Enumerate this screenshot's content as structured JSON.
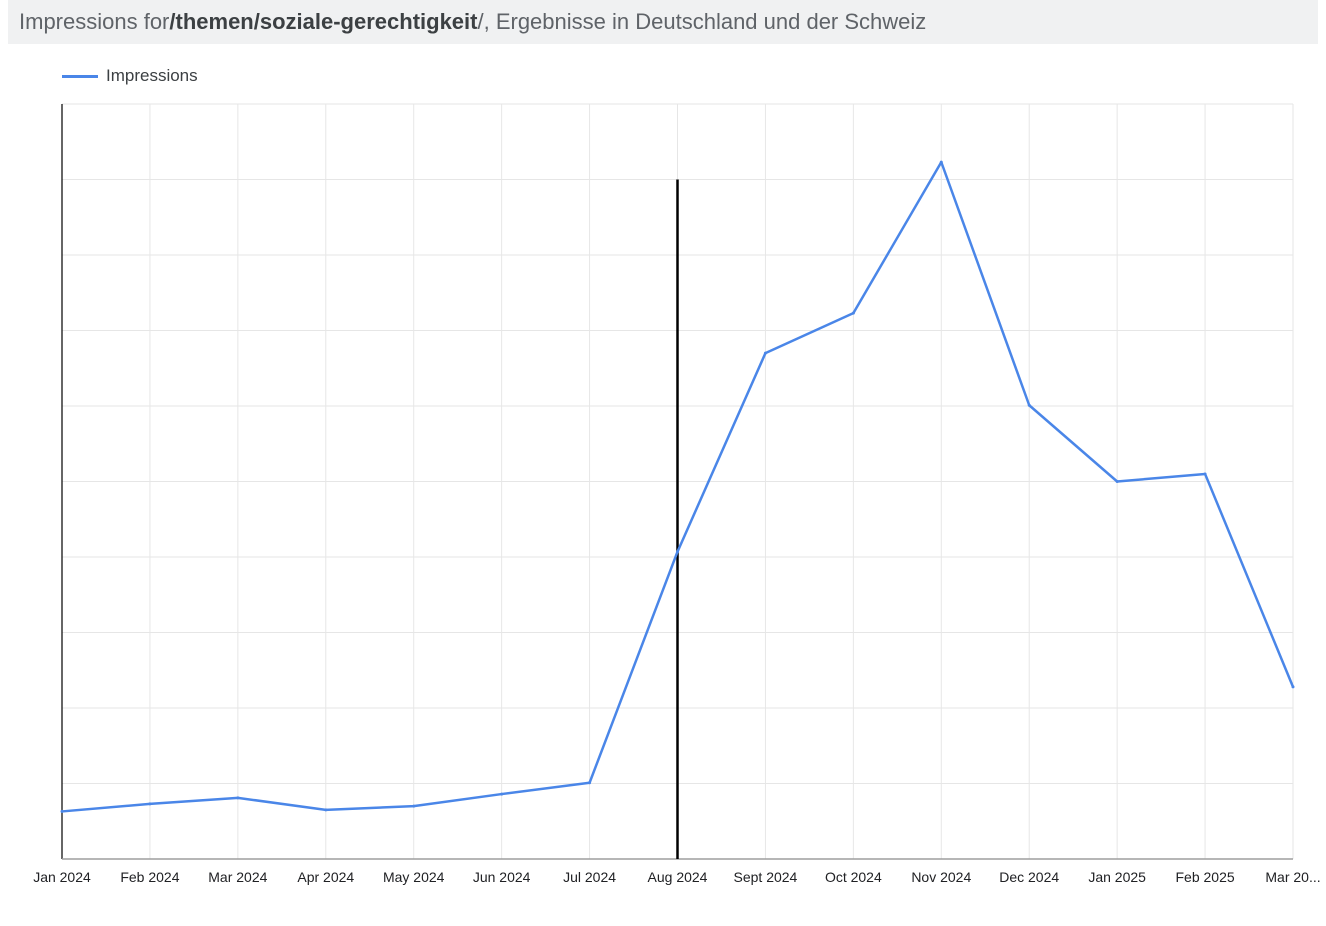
{
  "title": {
    "prefix": "Impressions for ",
    "path": "/themen/soziale-gerechtigkeit",
    "suffix": "/, Ergebnisse in Deutschland und der Schweiz"
  },
  "colors": {
    "series": "#4a86e8",
    "grid": "#e6e6e6",
    "axis": "#000000",
    "marker": "#000000",
    "title_bg": "#f0f1f2"
  },
  "chart_data": {
    "type": "line",
    "x": [
      "Jan 2024",
      "Feb 2024",
      "Mar 2024",
      "Apr 2024",
      "May 2024",
      "Jun 2024",
      "Jul 2024",
      "Aug 2024",
      "Sept 2024",
      "Oct 2024",
      "Nov 2024",
      "Dec 2024",
      "Jan 2025",
      "Feb 2025",
      "Mar 20..."
    ],
    "series": [
      {
        "name": "Impressions",
        "values": [
          6.3,
          7.3,
          8.1,
          6.5,
          7.0,
          8.6,
          10.1,
          40.7,
          67.0,
          72.3,
          92.3,
          60.1,
          50.0,
          51.0,
          22.8
        ]
      }
    ],
    "ylim": [
      0,
      100
    ],
    "y_gridlines": 10,
    "y_tick_labels_shown": false,
    "marker_x": "Aug 2024",
    "legend_position": "top-left",
    "grid": true
  }
}
